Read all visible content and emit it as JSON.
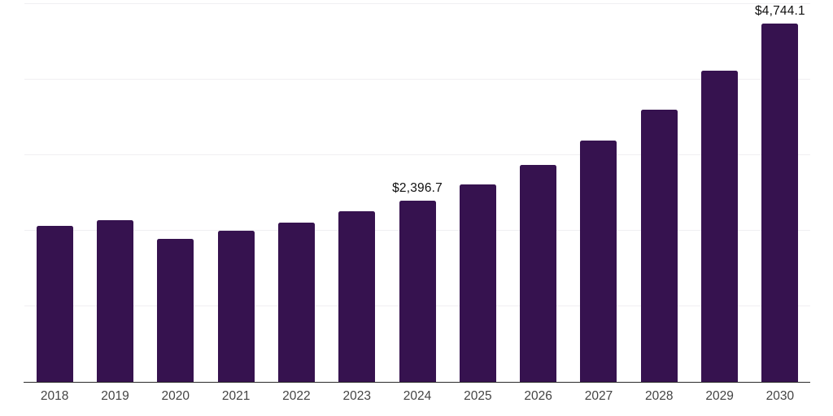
{
  "chart_data": {
    "type": "bar",
    "title": "",
    "xlabel": "",
    "ylabel": "",
    "categories": [
      "2018",
      "2019",
      "2020",
      "2021",
      "2022",
      "2023",
      "2024",
      "2025",
      "2026",
      "2027",
      "2028",
      "2029",
      "2030"
    ],
    "values": [
      2060,
      2140,
      1890,
      2000,
      2110,
      2260,
      2396.7,
      2615,
      2875,
      3195,
      3600,
      4120,
      4744.1
    ],
    "data_labels": {
      "2024": "$2,396.7",
      "2030": "$4,744.1"
    },
    "ylim": [
      0,
      5000
    ],
    "gridline_step": 1000,
    "grid": "horizontal",
    "legend_position": "none",
    "colors": {
      "bar": "#36124f",
      "gridline": "#f0eff2",
      "axis_line": "#2b2b2b",
      "tick_label": "#444444",
      "data_label": "#101010"
    }
  }
}
